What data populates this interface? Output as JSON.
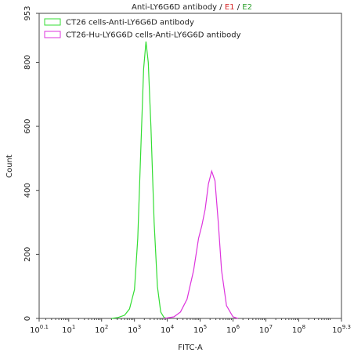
{
  "chart_data": {
    "type": "histogram-overlay",
    "title": {
      "main": "Anti-LY6G6D antibody",
      "sep1": "/",
      "e1": "E1",
      "sep2": "/",
      "e2": "E2",
      "e1_color": "#d62728",
      "e2_color": "#2ca02c"
    },
    "x_label": "FITC-A",
    "y_label": "Count",
    "xscale": "log",
    "xlim": [
      1.2589254,
      1995262315
    ],
    "xticks": [
      {
        "value": 1.2589254,
        "label": "10",
        "exponent": "0.1"
      },
      {
        "value": 10,
        "label": "10",
        "exponent": "1"
      },
      {
        "value": 100,
        "label": "10",
        "exponent": "2"
      },
      {
        "value": 1000,
        "label": "10",
        "exponent": "3"
      },
      {
        "value": 10000,
        "label": "10",
        "exponent": "4"
      },
      {
        "value": 100000,
        "label": "10",
        "exponent": "5"
      },
      {
        "value": 1000000,
        "label": "10",
        "exponent": "6"
      },
      {
        "value": 10000000,
        "label": "10",
        "exponent": "7"
      },
      {
        "value": 100000000,
        "label": "10",
        "exponent": "8"
      },
      {
        "value": 1995262315,
        "label": "10",
        "exponent": "9.3"
      }
    ],
    "ylim": [
      0,
      953
    ],
    "yticks": [
      0,
      200,
      400,
      600,
      800,
      953
    ],
    "legend": "top-left",
    "series": [
      {
        "name": "CT26 cells-Anti-LY6G6D antibody",
        "color": "#33dd33",
        "x": [
          200,
          316,
          501,
          708,
          1000,
          1259,
          1585,
          1905,
          2239,
          2630,
          3162,
          3981,
          5012,
          6310,
          7943,
          10000
        ],
        "values": [
          0,
          3,
          10,
          30,
          90,
          250,
          550,
          780,
          865,
          800,
          600,
          300,
          100,
          20,
          3,
          0
        ]
      },
      {
        "name": "CT26-Hu-LY6G6D cells-Anti-LY6G6D antibody",
        "color": "#dd33dd",
        "x": [
          7943,
          15849,
          25119,
          39811,
          63096,
          89125,
          112202,
          141254,
          177828,
          223872,
          281838,
          354813,
          446684,
          630957,
          1000000,
          1412538
        ],
        "values": [
          0,
          5,
          20,
          60,
          150,
          250,
          290,
          340,
          420,
          460,
          430,
          300,
          150,
          40,
          5,
          0
        ]
      }
    ]
  }
}
